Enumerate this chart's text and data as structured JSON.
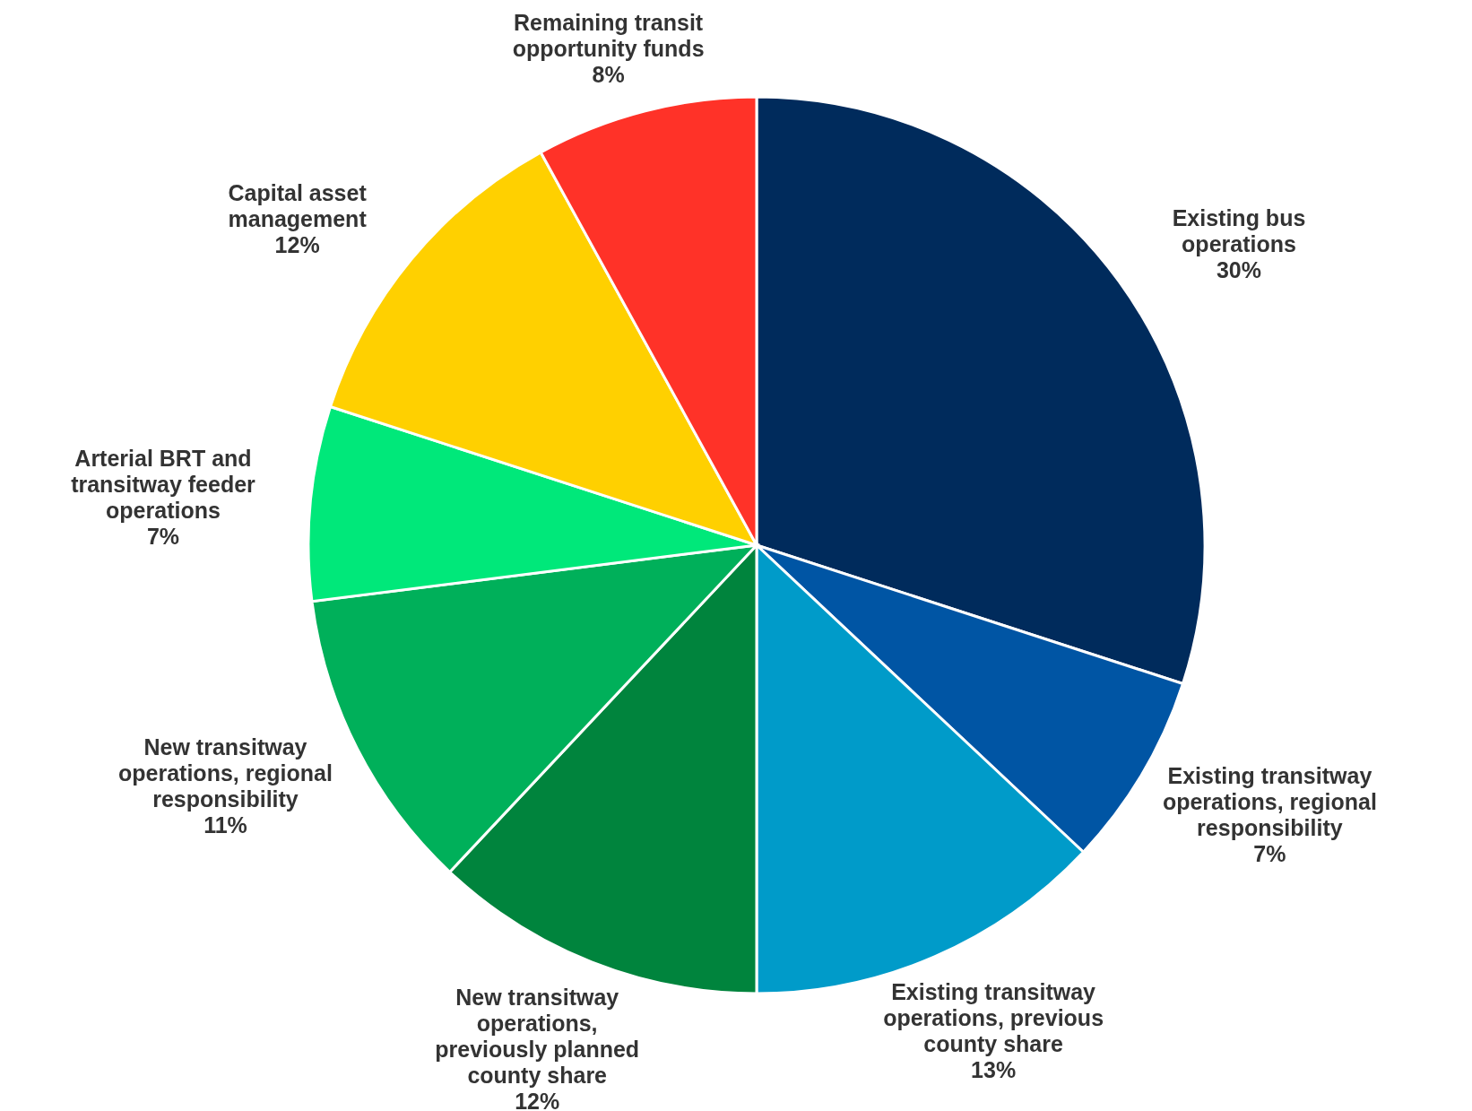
{
  "chart_data": {
    "type": "pie",
    "categories": [
      "Existing bus operations",
      "Existing transitway operations, regional responsibility",
      "Existing transitway operations, previous county share",
      "New transitway operations, previously planned county share",
      "New transitway operations, regional responsibility",
      "Arterial BRT and transitway feeder operations",
      "Capital asset management",
      "Remaining transit opportunity funds"
    ],
    "values": [
      30,
      7,
      13,
      12,
      11,
      7,
      12,
      8
    ],
    "colors": [
      "#002b5c",
      "#0055a4",
      "#009bc9",
      "#00843d",
      "#00b05a",
      "#00e87a",
      "#ffd000",
      "#ff3228"
    ],
    "value_labels": [
      "30%",
      "7%",
      "13%",
      "12%",
      "11%",
      "7%",
      "12%",
      "8%"
    ]
  }
}
